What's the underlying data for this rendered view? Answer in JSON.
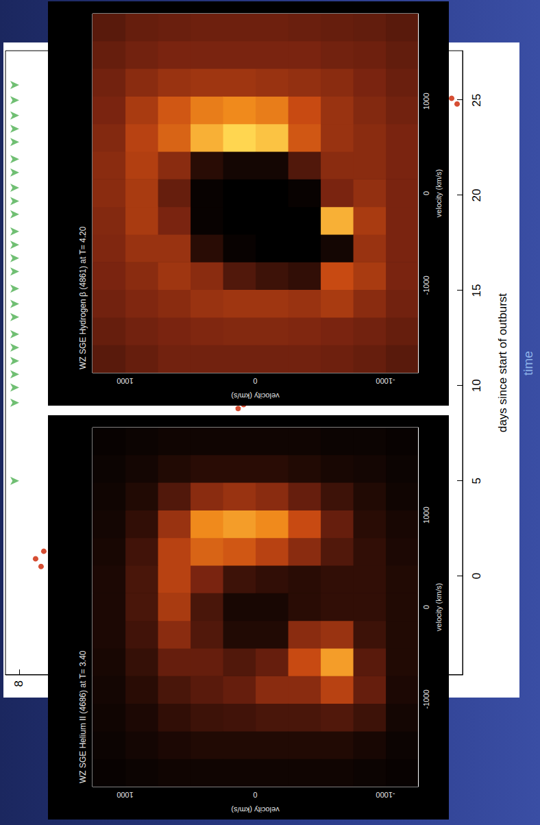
{
  "chart_data": [
    {
      "type": "scatter",
      "xlabel": "days since start of outburst",
      "xlim": [
        -5.2,
        27.6
      ],
      "xticks": [
        0,
        5,
        10,
        15,
        20,
        25
      ],
      "ylim": [
        16.1,
        7.75
      ],
      "yticks": [
        8
      ],
      "grid": false,
      "annotations": [
        "time"
      ],
      "series": [
        {
          "marker": "arrow",
          "color": "#4caf50",
          "x": [
            5.0,
            9.1,
            9.9,
            10.6,
            11.3,
            12.0,
            12.7,
            13.6,
            14.3,
            15.1,
            16.0,
            16.7,
            17.4,
            18.1,
            19.0,
            19.7,
            20.4,
            21.2,
            21.9,
            22.8,
            23.5,
            24.2,
            25.0,
            25.8
          ],
          "values": [
            8.0,
            8.0,
            8.0,
            8.0,
            8.0,
            8.0,
            8.0,
            8.0,
            8.0,
            8.0,
            8.0,
            8.0,
            8.0,
            8.0,
            8.0,
            8.0,
            8.0,
            8.0,
            8.0,
            8.0,
            8.0,
            8.0,
            8.0,
            8.0
          ]
        },
        {
          "marker": "circle",
          "color": "#cc2200",
          "x": [
            0.5,
            0.9,
            1.3,
            8.8,
            9.0,
            24.8,
            25.1
          ],
          "values": [
            8.4,
            8.3,
            8.45,
            12.0,
            12.1,
            16.0,
            15.9
          ]
        }
      ]
    },
    {
      "type": "heatmap",
      "title": "WZ SGE Helium II (4686) at T= 3.40",
      "xlabel": "velocity (km/s)",
      "ylabel": "velocity (km/s)",
      "xlim": [
        -1950,
        1950
      ],
      "ylim": [
        -1250,
        1250
      ],
      "xticks": [
        -1000,
        0,
        1000
      ],
      "yticks": [
        -1000,
        0,
        1000
      ],
      "zlim": [
        0,
        1
      ],
      "x": [
        -1800,
        -1500,
        -1200,
        -900,
        -600,
        -300,
        0,
        300,
        600,
        900,
        1200,
        1500,
        1800
      ],
      "y": [
        -1125,
        -875,
        -625,
        -375,
        -125,
        125,
        375,
        625,
        875,
        1125
      ],
      "cells": [
        [
          0.02,
          0.03,
          0.05,
          0.07,
          0.08,
          0.08,
          0.08,
          0.08,
          0.07,
          0.06,
          0.04,
          0.03,
          0.02
        ],
        [
          0.03,
          0.06,
          0.15,
          0.25,
          0.22,
          0.15,
          0.12,
          0.12,
          0.12,
          0.1,
          0.08,
          0.05,
          0.03
        ],
        [
          0.04,
          0.08,
          0.2,
          0.5,
          0.85,
          0.4,
          0.12,
          0.12,
          0.2,
          0.25,
          0.15,
          0.06,
          0.03
        ],
        [
          0.04,
          0.08,
          0.18,
          0.35,
          0.55,
          0.35,
          0.1,
          0.1,
          0.35,
          0.55,
          0.25,
          0.08,
          0.04
        ],
        [
          0.04,
          0.08,
          0.18,
          0.35,
          0.25,
          0.08,
          0.06,
          0.12,
          0.5,
          0.8,
          0.35,
          0.1,
          0.04
        ],
        [
          0.04,
          0.08,
          0.16,
          0.25,
          0.2,
          0.08,
          0.06,
          0.15,
          0.6,
          0.85,
          0.4,
          0.1,
          0.04
        ],
        [
          0.04,
          0.08,
          0.15,
          0.22,
          0.25,
          0.2,
          0.18,
          0.3,
          0.65,
          0.8,
          0.35,
          0.1,
          0.04
        ],
        [
          0.04,
          0.07,
          0.12,
          0.18,
          0.25,
          0.35,
          0.45,
          0.5,
          0.5,
          0.4,
          0.2,
          0.08,
          0.04
        ],
        [
          0.03,
          0.05,
          0.07,
          0.1,
          0.13,
          0.16,
          0.18,
          0.18,
          0.16,
          0.12,
          0.08,
          0.05,
          0.03
        ],
        [
          0.02,
          0.03,
          0.04,
          0.05,
          0.06,
          0.07,
          0.07,
          0.07,
          0.06,
          0.05,
          0.04,
          0.03,
          0.02
        ]
      ]
    },
    {
      "type": "heatmap",
      "title": "WZ SGE Hydrogen β (4861) at T= 4.20",
      "xlabel": "velocity (km/s)",
      "ylabel": "velocity (km/s)",
      "xlim": [
        -1950,
        1950
      ],
      "ylim": [
        -1250,
        1250
      ],
      "xticks": [
        -1000,
        0,
        1000
      ],
      "yticks": [
        -1000,
        0,
        1000
      ],
      "zlim": [
        0,
        1
      ],
      "x": [
        -1800,
        -1500,
        -1200,
        -900,
        -600,
        -300,
        0,
        300,
        600,
        900,
        1200,
        1500,
        1800
      ],
      "y": [
        -1125,
        -875,
        -625,
        -375,
        -125,
        125,
        375,
        625,
        875,
        1125
      ],
      "cells": [
        [
          0.22,
          0.25,
          0.28,
          0.3,
          0.3,
          0.3,
          0.3,
          0.3,
          0.3,
          0.28,
          0.26,
          0.24,
          0.22
        ],
        [
          0.25,
          0.28,
          0.35,
          0.45,
          0.4,
          0.45,
          0.38,
          0.35,
          0.35,
          0.33,
          0.3,
          0.27,
          0.24
        ],
        [
          0.27,
          0.3,
          0.45,
          0.55,
          0.05,
          0.9,
          0.3,
          0.35,
          0.4,
          0.4,
          0.35,
          0.28,
          0.25
        ],
        [
          0.28,
          0.32,
          0.4,
          0.12,
          0.0,
          0.0,
          0.02,
          0.2,
          0.6,
          0.55,
          0.38,
          0.3,
          0.26
        ],
        [
          0.28,
          0.33,
          0.42,
          0.15,
          0.0,
          0.0,
          0.0,
          0.05,
          0.95,
          0.75,
          0.4,
          0.3,
          0.27
        ],
        [
          0.28,
          0.33,
          0.42,
          0.2,
          0.02,
          0.0,
          0.0,
          0.05,
          1.0,
          0.8,
          0.42,
          0.3,
          0.27
        ],
        [
          0.28,
          0.32,
          0.4,
          0.35,
          0.1,
          0.02,
          0.02,
          0.1,
          0.9,
          0.75,
          0.42,
          0.3,
          0.27
        ],
        [
          0.28,
          0.3,
          0.35,
          0.42,
          0.4,
          0.3,
          0.25,
          0.35,
          0.65,
          0.6,
          0.4,
          0.3,
          0.26
        ],
        [
          0.25,
          0.28,
          0.32,
          0.35,
          0.4,
          0.45,
          0.45,
          0.48,
          0.5,
          0.45,
          0.35,
          0.28,
          0.25
        ],
        [
          0.22,
          0.25,
          0.28,
          0.3,
          0.32,
          0.33,
          0.35,
          0.35,
          0.33,
          0.3,
          0.28,
          0.25,
          0.22
        ]
      ]
    }
  ]
}
